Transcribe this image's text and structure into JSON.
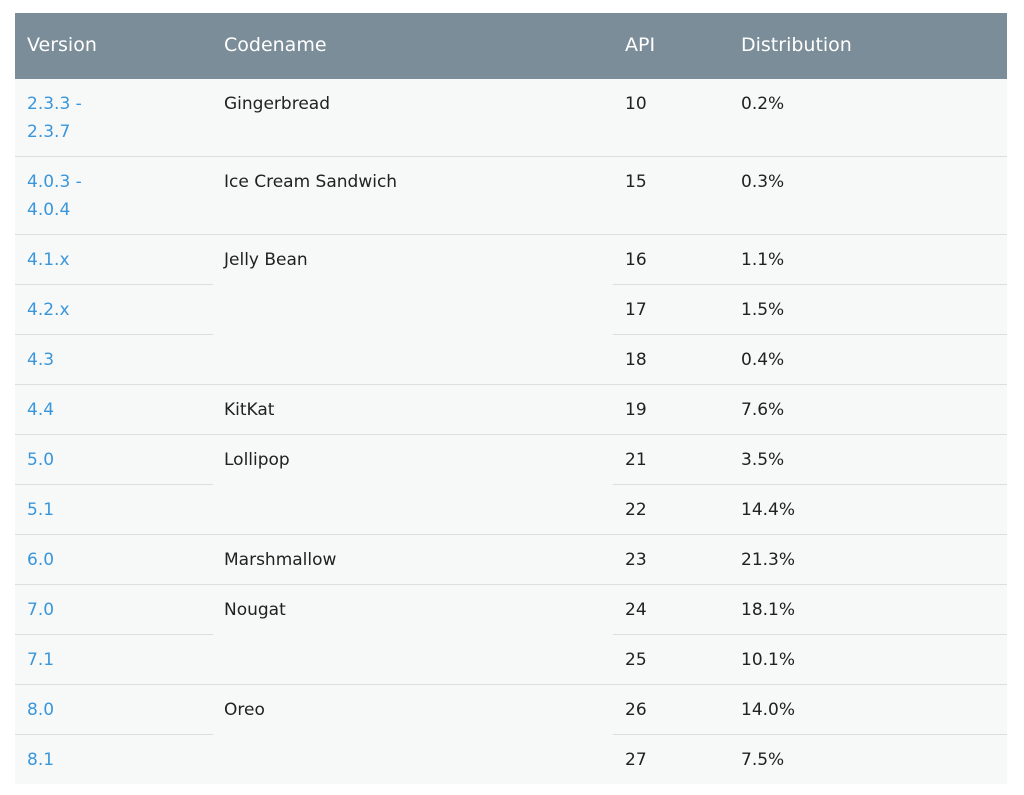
{
  "headers": {
    "version": "Version",
    "codename": "Codename",
    "api": "API",
    "distribution": "Distribution"
  },
  "colors": {
    "header_bg": "#7b8d98",
    "link": "#3a96db",
    "row_bg": "#f7f9f9"
  },
  "rows": [
    {
      "version_line1": "2.3.3 -",
      "version_line2": "2.3.7",
      "codename": "Gingerbread",
      "api": "10",
      "distribution": "0.2%"
    },
    {
      "version_line1": "4.0.3 -",
      "version_line2": "4.0.4",
      "codename": "Ice Cream Sandwich",
      "api": "15",
      "distribution": "0.3%"
    },
    {
      "version": "4.1.x",
      "codename": "Jelly Bean",
      "api": "16",
      "distribution": "1.1%"
    },
    {
      "version": "4.2.x",
      "api": "17",
      "distribution": "1.5%"
    },
    {
      "version": "4.3",
      "api": "18",
      "distribution": "0.4%"
    },
    {
      "version": "4.4",
      "codename": "KitKat",
      "api": "19",
      "distribution": "7.6%"
    },
    {
      "version": "5.0",
      "codename": "Lollipop",
      "api": "21",
      "distribution": "3.5%"
    },
    {
      "version": "5.1",
      "api": "22",
      "distribution": "14.4%"
    },
    {
      "version": "6.0",
      "codename": "Marshmallow",
      "api": "23",
      "distribution": "21.3%"
    },
    {
      "version": "7.0",
      "codename": "Nougat",
      "api": "24",
      "distribution": "18.1%"
    },
    {
      "version": "7.1",
      "api": "25",
      "distribution": "10.1%"
    },
    {
      "version": "8.0",
      "codename": "Oreo",
      "api": "26",
      "distribution": "14.0%"
    },
    {
      "version": "8.1",
      "api": "27",
      "distribution": "7.5%"
    }
  ]
}
